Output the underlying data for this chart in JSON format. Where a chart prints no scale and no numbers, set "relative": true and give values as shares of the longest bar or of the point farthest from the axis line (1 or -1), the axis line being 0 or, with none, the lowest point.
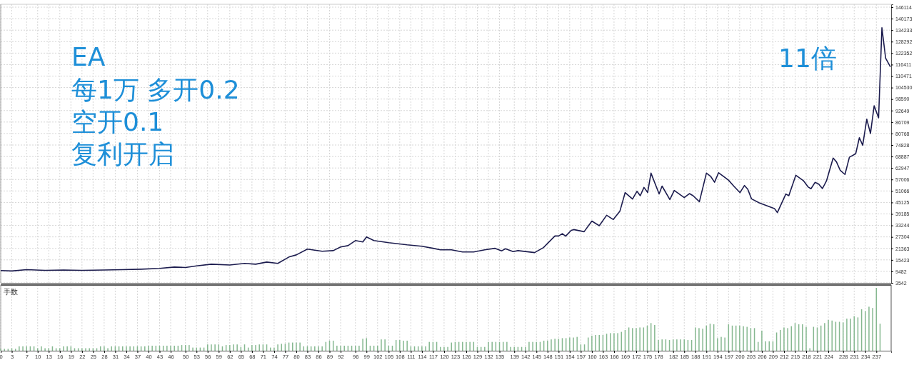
{
  "chart_data": [
    {
      "type": "line",
      "annotations": [
        "EA",
        "每1万 多开0.2",
        "空开0.1",
        "复利开启",
        "11倍"
      ],
      "series": [
        {
          "color": "#1c1c4e",
          "x": [
            0,
            3,
            7,
            12,
            17,
            22,
            28,
            33,
            38,
            43,
            47,
            50,
            53,
            57,
            62,
            66,
            69,
            72,
            75,
            78,
            80,
            83,
            87,
            90,
            92,
            94,
            96,
            98,
            99,
            101,
            105,
            110,
            114,
            117,
            119,
            122,
            125,
            128,
            131,
            133.8,
            135.6,
            136.6,
            138.7,
            140,
            144.5,
            146.9,
            150,
            151,
            152,
            152.9,
            154.4,
            155.1,
            157.9,
            160,
            162,
            164,
            165.8,
            167.6,
            169,
            171,
            172.2,
            173.1,
            174.1,
            175.1,
            176,
            178.2,
            179,
            181.1,
            182.3,
            185,
            186.4,
            187.4,
            189.1,
            191,
            192.2,
            193.2,
            194.3,
            197,
            198.4,
            200.1,
            201.3,
            202.2,
            203.2,
            205.3,
            209.4,
            210.2,
            212.5,
            213.3,
            215.2,
            217.3,
            218.5,
            219.3,
            220.4,
            221.4,
            222.4,
            223.5,
            225.3,
            226.2,
            227.2,
            228.5,
            229.7,
            231.4,
            232.4,
            233.3,
            234.4,
            235.4,
            236.4,
            237.6,
            238.5,
            239.5,
            240.8
          ],
          "values": [
            9900,
            9700,
            10400,
            10000,
            10200,
            10000,
            10200,
            10400,
            10600,
            11000,
            11700,
            11500,
            12300,
            13200,
            12800,
            13600,
            13200,
            14300,
            13600,
            16900,
            18000,
            21000,
            19900,
            20200,
            22100,
            22800,
            25400,
            24700,
            27300,
            25400,
            24300,
            23200,
            22500,
            21400,
            20600,
            20600,
            19500,
            19500,
            20600,
            21400,
            20100,
            21200,
            19700,
            20200,
            19200,
            21800,
            27800,
            27800,
            29000,
            27700,
            30700,
            31100,
            30000,
            35500,
            33100,
            38500,
            36300,
            40700,
            50200,
            46900,
            50900,
            48600,
            52900,
            50300,
            60300,
            49500,
            53600,
            46600,
            51300,
            47600,
            49700,
            48600,
            45500,
            60300,
            58500,
            55600,
            60500,
            56600,
            53600,
            50200,
            53900,
            51900,
            47000,
            44900,
            42000,
            39900,
            49500,
            48600,
            59200,
            56300,
            53200,
            52200,
            55500,
            54600,
            52300,
            56300,
            68100,
            66100,
            61800,
            59600,
            68500,
            70300,
            78600,
            74700,
            88200,
            80800,
            95100,
            88900,
            135500,
            119800,
            115200
          ]
        }
      ],
      "xlim": [
        0,
        241
      ],
      "xticks": [
        0,
        3,
        7,
        10,
        13,
        16,
        19,
        22,
        25,
        28,
        31,
        34,
        37,
        40,
        43,
        46,
        50,
        53,
        56,
        59,
        62,
        65,
        68,
        71,
        74,
        77,
        80,
        83,
        86,
        89,
        92,
        96,
        99,
        102,
        105,
        108,
        111,
        114,
        117,
        120,
        123,
        126,
        129,
        132,
        135,
        139,
        142,
        145,
        148,
        151,
        154,
        157,
        160,
        163,
        166,
        169,
        172,
        175,
        178,
        182,
        185,
        188,
        191,
        194,
        197,
        200,
        203,
        206,
        209,
        212,
        215,
        218,
        221,
        224,
        228,
        231,
        234,
        237
      ],
      "ylim": [
        3542,
        147600
      ],
      "yticks": [
        3542,
        9482,
        15423,
        21363,
        27304,
        33244,
        39185,
        45125,
        51066,
        57006,
        62947,
        68887,
        74828,
        80768,
        86709,
        92649,
        98590,
        104530,
        110471,
        116411,
        122352,
        128292,
        134233,
        140173,
        146114
      ],
      "grid": true,
      "tick_labels": "y"
    },
    {
      "type": "bar",
      "relative": true,
      "ylabel": "手数",
      "color": "#86b890",
      "x": [
        0,
        1,
        2,
        3,
        4,
        5,
        6,
        7,
        8,
        9,
        10,
        11,
        12,
        13,
        14,
        15,
        16,
        17,
        18,
        19,
        20,
        21,
        22,
        23,
        24,
        25,
        26,
        27,
        28,
        29,
        30,
        31,
        32,
        33,
        34,
        35,
        36,
        37,
        38,
        39,
        40,
        41,
        42,
        43,
        44,
        45,
        46,
        47,
        48,
        49,
        50,
        51,
        52,
        53,
        54,
        55,
        56,
        57,
        58,
        59,
        60,
        61,
        62,
        63,
        64,
        65,
        66,
        67,
        68,
        69,
        70,
        71,
        72,
        73,
        74,
        75,
        76,
        77,
        78,
        79,
        80,
        81,
        82,
        83,
        84,
        85,
        86,
        87,
        88,
        89,
        90,
        91,
        92,
        93,
        94,
        95,
        96,
        97,
        98,
        99,
        100,
        101,
        102,
        103,
        104,
        105,
        106,
        107,
        108,
        109,
        110,
        111,
        112,
        113,
        114,
        115,
        116,
        117,
        118,
        119,
        120,
        121,
        122,
        123,
        124,
        125,
        126,
        127,
        128,
        129,
        130,
        131,
        132,
        133,
        134,
        135,
        136,
        137,
        138,
        139,
        140,
        141,
        142,
        143,
        144,
        145,
        146,
        147,
        148,
        149,
        150,
        151,
        152,
        153,
        154,
        155,
        156,
        157,
        158,
        159,
        160,
        161,
        162,
        163,
        164,
        165,
        166,
        167,
        168,
        169,
        170,
        171,
        172,
        173,
        174,
        175,
        176,
        177,
        178,
        179,
        180,
        181,
        182,
        183,
        184,
        185,
        186,
        187,
        188,
        189,
        190,
        191,
        192,
        193,
        194,
        195,
        196,
        197,
        198,
        199,
        200,
        201,
        202,
        203,
        204,
        205,
        206,
        207,
        208,
        209,
        210,
        211,
        212,
        213,
        214,
        215,
        216,
        217,
        218,
        219,
        220,
        221,
        222,
        223,
        224,
        225,
        226,
        227,
        228,
        229,
        230,
        231,
        232,
        233,
        234,
        235,
        236,
        237,
        238
      ],
      "values": [
        0.03,
        0.03,
        0.03,
        0.04,
        0.03,
        0.07,
        0.07,
        0.07,
        0.07,
        0.07,
        0.04,
        0.07,
        0.04,
        0.04,
        0.07,
        0.04,
        0.04,
        0.07,
        0.07,
        0.07,
        0.04,
        0.04,
        0.04,
        0.04,
        0.04,
        0.04,
        0.04,
        0.07,
        0.07,
        0.04,
        0.07,
        0.07,
        0.07,
        0.07,
        0.07,
        0.07,
        0.07,
        0.07,
        0.07,
        0.07,
        0.08,
        0.08,
        0.08,
        0.08,
        0.08,
        0.08,
        0.08,
        0.08,
        0.08,
        0.09,
        0.09,
        0.09,
        0.05,
        0.05,
        0.05,
        0.05,
        0.1,
        0.1,
        0.1,
        0.1,
        0.07,
        0.09,
        0.09,
        0.1,
        0.1,
        0.06,
        0.1,
        0.05,
        0.09,
        0.09,
        0.1,
        0.1,
        0.1,
        0.05,
        0.05,
        0.1,
        0.11,
        0.11,
        0.13,
        0.13,
        0.13,
        0.13,
        0.07,
        0.07,
        0.07,
        0.07,
        0.07,
        0.07,
        0.14,
        0.16,
        0.16,
        0.08,
        0.08,
        0.08,
        0.08,
        0.08,
        0.08,
        0.08,
        0.19,
        0.2,
        0.08,
        0.08,
        0.08,
        0.18,
        0.18,
        0.08,
        0.08,
        0.17,
        0.17,
        0.16,
        0.16,
        0.07,
        0.07,
        0.07,
        0.07,
        0.07,
        0.14,
        0.14,
        0.14,
        0.06,
        0.06,
        0.06,
        0.13,
        0.14,
        0.14,
        0.14,
        0.14,
        0.14,
        0.14,
        0.06,
        0.06,
        0.06,
        0.14,
        0.14,
        0.14,
        0.14,
        0.14,
        0.14,
        0.06,
        0.06,
        0.06,
        0.06,
        0.06,
        0.14,
        0.14,
        0.14,
        0.14,
        0.16,
        0.16,
        0.18,
        0.19,
        0.19,
        0.2,
        0.2,
        0.21,
        0.21,
        0.22,
        0.1,
        0.1,
        0.21,
        0.24,
        0.25,
        0.25,
        0.25,
        0.27,
        0.28,
        0.28,
        0.28,
        0.3,
        0.33,
        0.37,
        0.36,
        0.36,
        0.37,
        0.37,
        0.4,
        0.44,
        0.41,
        0.17,
        0.18,
        0.18,
        0.17,
        0.18,
        0.18,
        0.18,
        0.18,
        0.17,
        0.17,
        0.37,
        0.36,
        0.35,
        0.4,
        0.43,
        0.42,
        0.2,
        0.22,
        0.21,
        0.42,
        0.4,
        0.4,
        0.4,
        0.39,
        0.38,
        0.36,
        0.36,
        0.14,
        0.32,
        0.15,
        0.15,
        0.15,
        0.29,
        0.33,
        0.37,
        0.36,
        0.39,
        0.44,
        0.42,
        0.42,
        0.38,
        0.04,
        0.38,
        0.37,
        0.4,
        0.44,
        0.49,
        0.48,
        0.46,
        0.46,
        0.45,
        0.51,
        0.51,
        0.55,
        0.53,
        0.66,
        0.63,
        0.7,
        0.68,
        1,
        0.43
      ],
      "xlim": [
        0,
        241
      ],
      "xticks": [
        0,
        3,
        7,
        10,
        13,
        16,
        19,
        22,
        25,
        28,
        31,
        34,
        37,
        40,
        43,
        46,
        50,
        53,
        56,
        59,
        62,
        65,
        68,
        71,
        74,
        77,
        80,
        83,
        86,
        89,
        92,
        96,
        99,
        102,
        105,
        108,
        111,
        114,
        117,
        120,
        123,
        126,
        129,
        132,
        135,
        139,
        142,
        145,
        148,
        151,
        154,
        157,
        160,
        163,
        166,
        169,
        172,
        175,
        178,
        182,
        185,
        188,
        191,
        194,
        197,
        200,
        203,
        206,
        209,
        212,
        215,
        218,
        221,
        224,
        228,
        231,
        234,
        237
      ],
      "grid": "x",
      "tick_labels": "x"
    }
  ]
}
